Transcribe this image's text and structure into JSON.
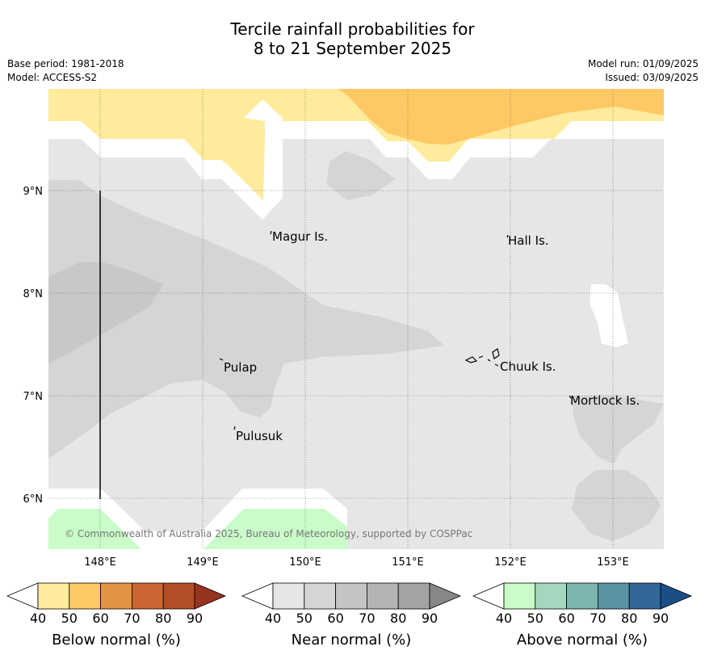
{
  "header": {
    "title_line1": "Tercile rainfall probabilities for",
    "title_line2": "8 to 21 September 2025",
    "base_period": "Base period: 1981-2018",
    "model": "Model: ACCESS-S2",
    "model_run": "Model run: 01/09/2025",
    "issued": "Issued: 03/09/2025"
  },
  "map": {
    "lon_labels": [
      "148°E",
      "149°E",
      "150°E",
      "151°E",
      "152°E",
      "153°E"
    ],
    "lat_labels": [
      "9°N",
      "8°N",
      "7°N",
      "6°N"
    ],
    "places": [
      "Magur Is.",
      "Hall Is.",
      "Pulap",
      "Chuuk Is.",
      "Mortlock Is.",
      "Pulusuk"
    ],
    "copyright": "© Commonwealth of Australia 2025, Bureau of Meteorology, supported by COSPPac"
  },
  "legends": [
    {
      "title": "Below normal (%)",
      "ticks": [
        "40",
        "50",
        "60",
        "70",
        "80",
        "90"
      ],
      "colors": [
        "#ffeb9c",
        "#fec965",
        "#e29445",
        "#cd6533",
        "#b34e27",
        "#97341f"
      ]
    },
    {
      "title": "Near normal (%)",
      "ticks": [
        "40",
        "50",
        "60",
        "70",
        "80",
        "90"
      ],
      "colors": [
        "#e6e6e6",
        "#d5d5d5",
        "#c4c4c4",
        "#b3b3b3",
        "#a3a3a3",
        "#878787"
      ]
    },
    {
      "title": "Above normal (%)",
      "ticks": [
        "40",
        "50",
        "60",
        "70",
        "80",
        "90"
      ],
      "colors": [
        "#c9fcc9",
        "#a3d8bd",
        "#7db4b0",
        "#5a94a2",
        "#336699",
        "#1b4e86"
      ]
    }
  ]
}
